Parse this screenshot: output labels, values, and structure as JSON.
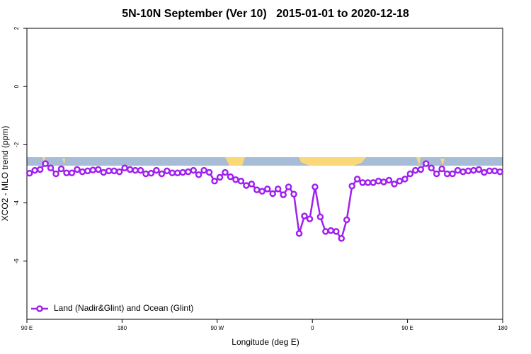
{
  "chart_data": {
    "type": "line",
    "title": "5N-10N September (Ver 10)   2015-01-01 to 2020-12-18",
    "x_label": "Longitude (deg E)",
    "y_label": "XCO2 - MLO trend (ppm)",
    "x": [
      92.5,
      97.5,
      102.5,
      107.5,
      112.5,
      117.5,
      122.5,
      127.5,
      132.5,
      137.5,
      142.5,
      147.5,
      152.5,
      157.5,
      162.5,
      167.5,
      172.5,
      177.5,
      182.5,
      187.5,
      192.5,
      197.5,
      202.5,
      207.5,
      212.5,
      217.5,
      222.5,
      227.5,
      232.5,
      237.5,
      242.5,
      247.5,
      252.5,
      257.5,
      262.5,
      267.5,
      272.5,
      277.5,
      282.5,
      287.5,
      292.5,
      297.5,
      302.5,
      307.5,
      312.5,
      317.5,
      322.5,
      327.5,
      332.5,
      337.5,
      342.5,
      347.5,
      352.5,
      357.5,
      362.5,
      367.5,
      372.5,
      377.5,
      382.5,
      387.5,
      392.5,
      397.5,
      402.5,
      407.5,
      412.5,
      417.5,
      422.5,
      427.5,
      432.5,
      437.5,
      442.5,
      447.5,
      452.5,
      457.5,
      462.5,
      467.5,
      472.5,
      477.5,
      482.5,
      487.5,
      492.5,
      497.5,
      502.5,
      507.5,
      512.5,
      517.5,
      522.5,
      527.5,
      532.5,
      537.5
    ],
    "series": [
      {
        "name": "Land (Nadir&Glint) and Ocean (Glint)",
        "color": "#a020f0",
        "values": [
          -2.98,
          -2.88,
          -2.85,
          -2.65,
          -2.8,
          -3.0,
          -2.83,
          -2.97,
          -2.97,
          -2.85,
          -2.93,
          -2.9,
          -2.87,
          -2.85,
          -2.95,
          -2.9,
          -2.9,
          -2.93,
          -2.8,
          -2.85,
          -2.88,
          -2.88,
          -3.0,
          -2.98,
          -2.88,
          -3.0,
          -2.9,
          -2.97,
          -2.97,
          -2.95,
          -2.93,
          -2.88,
          -3.03,
          -2.88,
          -2.95,
          -3.25,
          -3.12,
          -2.95,
          -3.1,
          -3.2,
          -3.25,
          -3.4,
          -3.35,
          -3.55,
          -3.6,
          -3.52,
          -3.68,
          -3.52,
          -3.72,
          -3.45,
          -3.7,
          -5.05,
          -4.45,
          -4.55,
          -3.45,
          -4.48,
          -4.98,
          -4.95,
          -4.98,
          -5.22,
          -4.58,
          -3.42,
          -3.18,
          -3.3,
          -3.3,
          -3.3,
          -3.25,
          -3.28,
          -3.22,
          -3.35,
          -3.25,
          -3.18,
          -3.0,
          -2.88,
          -2.85,
          -2.65,
          -2.8,
          -3.0,
          -2.83,
          -3.0,
          -3.0,
          -2.88,
          -2.93,
          -2.9,
          -2.88,
          -2.85,
          -2.95,
          -2.9,
          -2.9,
          -2.93
        ]
      }
    ],
    "xlim": [
      90,
      540
    ],
    "xticks": [
      {
        "value": 90,
        "label": "90 E"
      },
      180,
      {
        "value": 270,
        "label": "90 W"
      },
      {
        "value": 360,
        "label": "0"
      },
      {
        "value": 450,
        "label": "90 E"
      },
      {
        "value": 540,
        "label": "180"
      }
    ],
    "ylim": [
      -8,
      2
    ],
    "yticks": [
      2,
      0,
      -2,
      -4,
      -6
    ],
    "legend": "bottom-left"
  }
}
